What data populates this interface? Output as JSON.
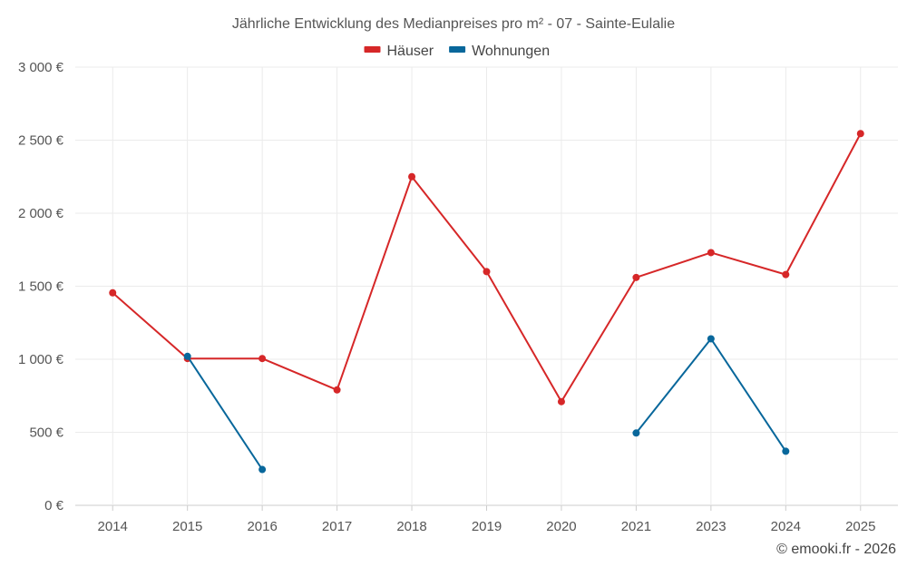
{
  "chart_data": {
    "type": "line",
    "title": "Jährliche Entwicklung des Medianpreises pro m² - 07 - Sainte-Eulalie",
    "categories": [
      "2014",
      "2015",
      "2016",
      "2017",
      "2018",
      "2019",
      "2020",
      "2021",
      "2023",
      "2024",
      "2025"
    ],
    "ylim": [
      0,
      3000
    ],
    "yticks": [
      0,
      500,
      1000,
      1500,
      2000,
      2500,
      3000
    ],
    "ytick_labels": [
      "0 €",
      "500 €",
      "1 000 €",
      "1 500 €",
      "2 000 €",
      "2 500 €",
      "3 000 €"
    ],
    "legend_position": "top-center",
    "grid": true,
    "series": [
      {
        "name": "Häuser",
        "color": "#d62728",
        "values": [
          1455,
          1005,
          1005,
          790,
          2250,
          1600,
          710,
          1560,
          1730,
          1580,
          2545
        ]
      },
      {
        "name": "Wohnungen",
        "color": "#08679b",
        "values": [
          null,
          1020,
          245,
          null,
          null,
          null,
          null,
          495,
          1140,
          370,
          null
        ]
      }
    ]
  },
  "credit": "© emooki.fr - 2026"
}
